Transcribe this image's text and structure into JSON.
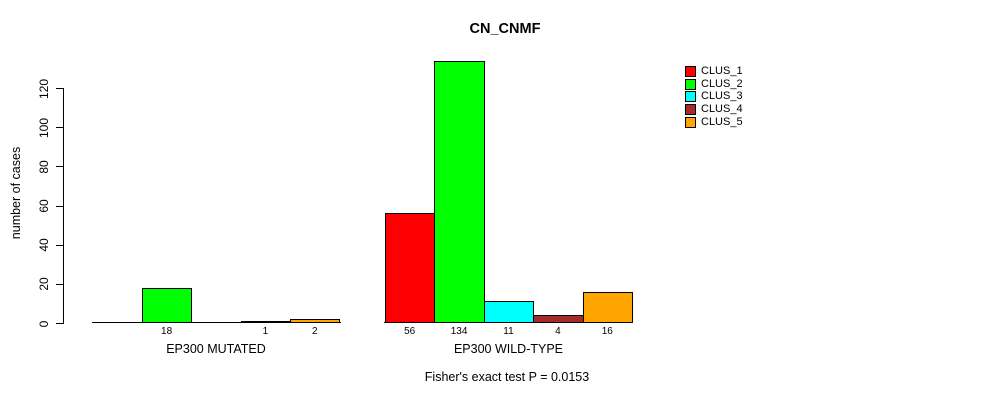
{
  "chart_data": {
    "type": "bar",
    "title": "CN_CNMF",
    "ylabel": "number of cases",
    "xlabel": "",
    "yticks": [
      0,
      20,
      40,
      60,
      80,
      100,
      120
    ],
    "ylim": [
      0,
      135
    ],
    "grid": false,
    "legend_position": "top-right",
    "categories": [
      "EP300 MUTATED",
      "EP300 WILD-TYPE"
    ],
    "series": [
      {
        "name": "CLUS_1",
        "color": "#FF0000",
        "values": [
          0,
          56
        ]
      },
      {
        "name": "CLUS_2",
        "color": "#00FF00",
        "values": [
          18,
          134
        ]
      },
      {
        "name": "CLUS_3",
        "color": "#00FFFF",
        "values": [
          0,
          11
        ]
      },
      {
        "name": "CLUS_4",
        "color": "#A52A2A",
        "values": [
          1,
          4
        ]
      },
      {
        "name": "CLUS_5",
        "color": "#FFA500",
        "values": [
          2,
          16
        ]
      }
    ],
    "bar_value_labels": {
      "EP300 MUTATED": [
        null,
        18,
        null,
        1,
        2
      ],
      "EP300 WILD-TYPE": [
        56,
        134,
        11,
        4,
        16
      ]
    },
    "footnote": "Fisher's exact test P = 0.0153",
    "colors": {
      "axis": "#000000",
      "background": "#FFFFFF",
      "text": "#000000"
    }
  }
}
